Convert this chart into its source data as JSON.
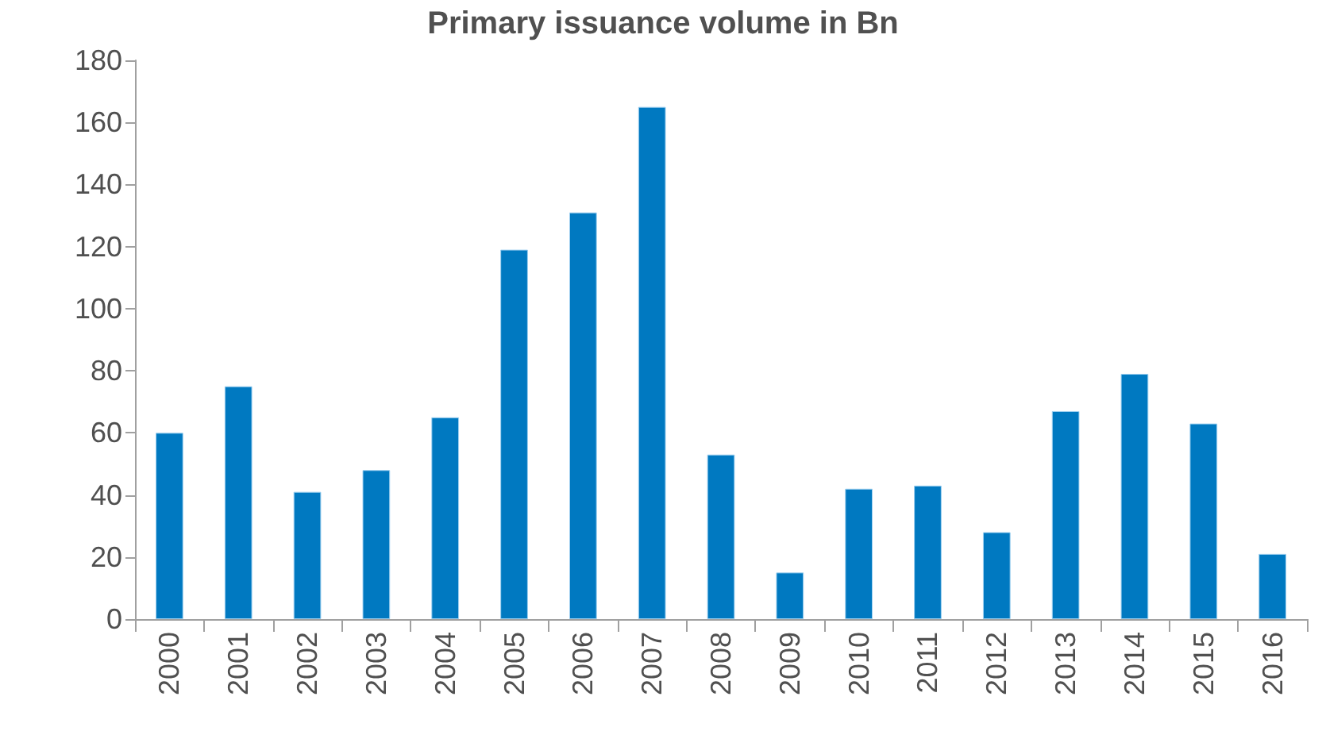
{
  "chart_data": {
    "type": "bar",
    "title": "Primary issuance volume in Bn",
    "categories": [
      "2000",
      "2001",
      "2002",
      "2003",
      "2004",
      "2005",
      "2006",
      "2007",
      "2008",
      "2009",
      "2010",
      "2011",
      "2012",
      "2013",
      "2014",
      "2015",
      "2016"
    ],
    "values": [
      60,
      75,
      41,
      48,
      65,
      119,
      131,
      165,
      53,
      15,
      42,
      43,
      28,
      67,
      79,
      63,
      21
    ],
    "color": "#0079c1",
    "ylim": [
      0,
      180
    ],
    "yticks": [
      0,
      20,
      40,
      60,
      80,
      100,
      120,
      140,
      160,
      180
    ],
    "grid": false
  }
}
